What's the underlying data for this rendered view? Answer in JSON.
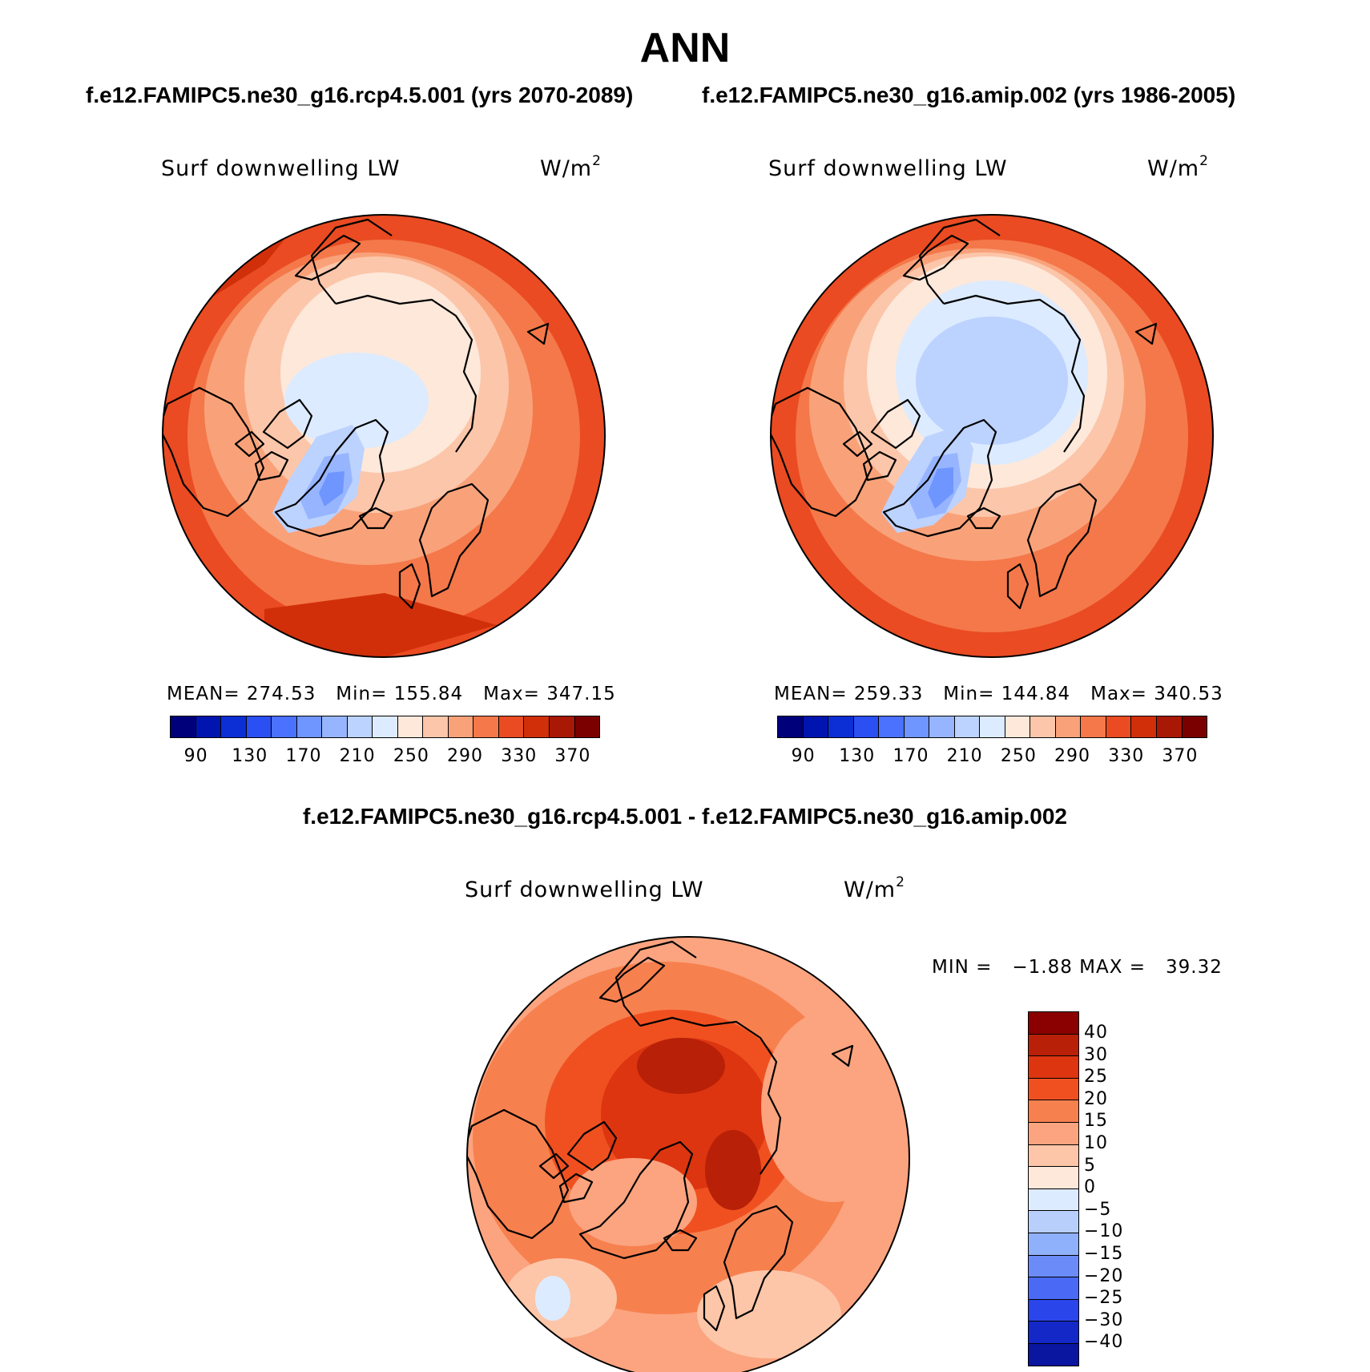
{
  "page": {
    "season": "ANN",
    "left_case_title": "f.e12.FAMIPC5.ne30_g16.rcp4.5.001 (yrs 2070-2089)",
    "right_case_title": "f.e12.FAMIPC5.ne30_g16.amip.002 (yrs 1986-2005)",
    "diff_title": "f.e12.FAMIPC5.ne30_g16.rcp4.5.001 - f.e12.FAMIPC5.ne30_g16.amip.002"
  },
  "panels": {
    "left": {
      "variable": "Surf downwelling LW",
      "unit_base": "W/m",
      "unit_exp": "2",
      "stats": "MEAN= 274.53   Min= 155.84   Max= 347.15"
    },
    "right": {
      "variable": "Surf downwelling LW",
      "unit_base": "W/m",
      "unit_exp": "2",
      "stats": "MEAN= 259.33   Min= 144.84   Max= 340.53"
    },
    "diff": {
      "variable": "Surf downwelling LW",
      "unit_base": "W/m",
      "unit_exp": "2",
      "minmax": "MIN =   −1.88 MAX =   39.32"
    }
  },
  "colorbars": {
    "abs_ticks": [
      "90",
      "130",
      "170",
      "210",
      "250",
      "290",
      "330",
      "370"
    ],
    "abs_colors": [
      "#00007a",
      "#0015b0",
      "#0b2fd4",
      "#2a4ff2",
      "#4a72ff",
      "#6f95ff",
      "#97b5ff",
      "#bcd2ff",
      "#dcebff",
      "#fde8da",
      "#fcc6aa",
      "#f9a27a",
      "#f4784a",
      "#ea4b22",
      "#d12f0a",
      "#a81805",
      "#7a0000"
    ],
    "diff_ticks": [
      "40",
      "30",
      "25",
      "20",
      "15",
      "10",
      "5",
      "0",
      "−5",
      "−10",
      "−15",
      "−20",
      "−25",
      "−30",
      "−40"
    ],
    "diff_colors": [
      "#8b0000",
      "#b82008",
      "#dc3510",
      "#f05020",
      "#f7804f",
      "#fba47f",
      "#fdc6a8",
      "#fde8da",
      "#dcebff",
      "#b8cffc",
      "#8fb0fa",
      "#6b8cf8",
      "#4a6af5",
      "#2a45ea",
      "#1428c8",
      "#0a15a0"
    ]
  },
  "chart_data": [
    {
      "type": "heatmap",
      "projection": "north polar stereographic",
      "title": "Surf downwelling LW",
      "units": "W/m2",
      "case": "f.e12.FAMIPC5.ne30_g16.rcp4.5.001 (yrs 2070-2089)",
      "mean": 274.53,
      "min": 155.84,
      "max": 347.15,
      "levels": [
        90,
        130,
        170,
        210,
        250,
        290,
        330,
        370
      ]
    },
    {
      "type": "heatmap",
      "projection": "north polar stereographic",
      "title": "Surf downwelling LW",
      "units": "W/m2",
      "case": "f.e12.FAMIPC5.ne30_g16.amip.002 (yrs 1986-2005)",
      "mean": 259.33,
      "min": 144.84,
      "max": 340.53,
      "levels": [
        90,
        130,
        170,
        210,
        250,
        290,
        330,
        370
      ]
    },
    {
      "type": "heatmap",
      "projection": "north polar stereographic",
      "title": "Surf downwelling LW",
      "units": "W/m2",
      "case": "f.e12.FAMIPC5.ne30_g16.rcp4.5.001 - f.e12.FAMIPC5.ne30_g16.amip.002",
      "min": -1.88,
      "max": 39.32,
      "levels": [
        -40,
        -30,
        -25,
        -20,
        -15,
        -10,
        -5,
        0,
        5,
        10,
        15,
        20,
        25,
        30,
        40
      ]
    }
  ]
}
